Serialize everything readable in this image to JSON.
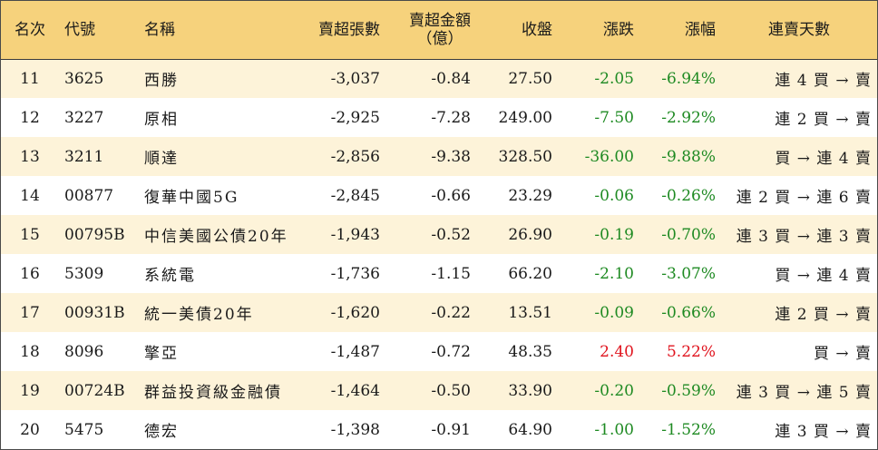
{
  "headers": {
    "rank": "名次",
    "code": "代號",
    "name": "名稱",
    "net_sell_shares": "賣超張數",
    "net_sell_amount_line1": "賣超金額",
    "net_sell_amount_line2": "（億）",
    "close": "收盤",
    "change": "漲跌",
    "change_pct": "漲幅",
    "streak": "連賣天數"
  },
  "colors": {
    "header_bg": "#f6d27c",
    "stripe_bg": "#fdf3d9",
    "up": "#e0141e",
    "down": "#1e8a22"
  },
  "rows": [
    {
      "rank": "11",
      "code": "3625",
      "name": "西勝",
      "shares": "-3,037",
      "amount": "-0.84",
      "close": "27.50",
      "change": "-2.05",
      "pct": "-6.94%",
      "direction": "down",
      "streak": "連 4 買 → 賣"
    },
    {
      "rank": "12",
      "code": "3227",
      "name": "原相",
      "shares": "-2,925",
      "amount": "-7.28",
      "close": "249.00",
      "change": "-7.50",
      "pct": "-2.92%",
      "direction": "down",
      "streak": "連 2 買 → 賣"
    },
    {
      "rank": "13",
      "code": "3211",
      "name": "順達",
      "shares": "-2,856",
      "amount": "-9.38",
      "close": "328.50",
      "change": "-36.00",
      "pct": "-9.88%",
      "direction": "down",
      "streak": "買 → 連 4 賣"
    },
    {
      "rank": "14",
      "code": "00877",
      "name": "復華中國5G",
      "shares": "-2,845",
      "amount": "-0.66",
      "close": "23.29",
      "change": "-0.06",
      "pct": "-0.26%",
      "direction": "down",
      "streak": "連 2 買 → 連 6 賣"
    },
    {
      "rank": "15",
      "code": "00795B",
      "name": "中信美國公債20年",
      "shares": "-1,943",
      "amount": "-0.52",
      "close": "26.90",
      "change": "-0.19",
      "pct": "-0.70%",
      "direction": "down",
      "streak": "連 3 買 → 連 3 賣"
    },
    {
      "rank": "16",
      "code": "5309",
      "name": "系統電",
      "shares": "-1,736",
      "amount": "-1.15",
      "close": "66.20",
      "change": "-2.10",
      "pct": "-3.07%",
      "direction": "down",
      "streak": "買 → 連 4 賣"
    },
    {
      "rank": "17",
      "code": "00931B",
      "name": "統一美債20年",
      "shares": "-1,620",
      "amount": "-0.22",
      "close": "13.51",
      "change": "-0.09",
      "pct": "-0.66%",
      "direction": "down",
      "streak": "連 2 買 → 賣"
    },
    {
      "rank": "18",
      "code": "8096",
      "name": "擎亞",
      "shares": "-1,487",
      "amount": "-0.72",
      "close": "48.35",
      "change": "2.40",
      "pct": "5.22%",
      "direction": "up",
      "streak": "買 → 賣"
    },
    {
      "rank": "19",
      "code": "00724B",
      "name": "群益投資級金融債",
      "shares": "-1,464",
      "amount": "-0.50",
      "close": "33.90",
      "change": "-0.20",
      "pct": "-0.59%",
      "direction": "down",
      "streak": "連 3 買 → 連 5 賣"
    },
    {
      "rank": "20",
      "code": "5475",
      "name": "德宏",
      "shares": "-1,398",
      "amount": "-0.91",
      "close": "64.90",
      "change": "-1.00",
      "pct": "-1.52%",
      "direction": "down",
      "streak": "連 3 買 → 賣"
    }
  ]
}
